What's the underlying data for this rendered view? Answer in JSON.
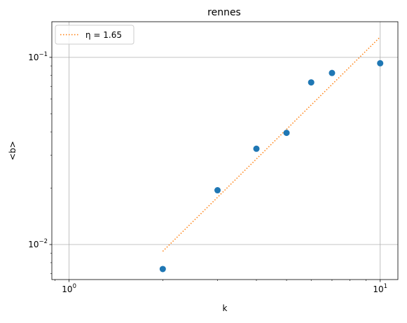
{
  "chart_data": {
    "type": "scatter",
    "title": "rennes",
    "xlabel": "k",
    "ylabel": "<b>",
    "xscale": "log",
    "yscale": "log",
    "xlim": [
      0.88,
      11.4
    ],
    "ylim": [
      0.0065,
      0.155
    ],
    "grid": "major",
    "legend_placement": "top-left",
    "xticks": [
      {
        "value": 1,
        "base": "10",
        "exp": "0"
      },
      {
        "value": 10,
        "base": "10",
        "exp": "1"
      }
    ],
    "yticks": [
      {
        "value": 0.01,
        "base": "10",
        "exp": "−2"
      },
      {
        "value": 0.1,
        "base": "10",
        "exp": "−1"
      }
    ],
    "series": [
      {
        "kind": "points",
        "color": "#1f77b4",
        "x": [
          2,
          3,
          4,
          5,
          6,
          7,
          10
        ],
        "y": [
          0.0074,
          0.0195,
          0.0325,
          0.0395,
          0.0735,
          0.0825,
          0.093
        ]
      },
      {
        "kind": "fit-line",
        "name": "η = 1.65",
        "color": "#ff7f0e",
        "style": "dotted",
        "x": [
          2,
          10
        ],
        "y": [
          0.0092,
          0.1285
        ]
      }
    ]
  }
}
